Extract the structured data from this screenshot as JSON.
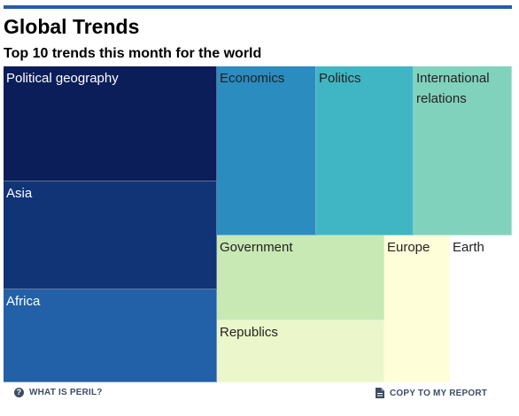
{
  "header": {
    "title": "Global Trends",
    "subtitle": "Top 10 trends this month for the world"
  },
  "colors": {
    "rule": "#2a5aa8"
  },
  "chart_data": {
    "type": "treemap",
    "title": "Global Trends",
    "subtitle": "Top 10 trends this month for the world",
    "items": [
      {
        "label": "Political geography",
        "rank": 1,
        "color": "#0b1e5a"
      },
      {
        "label": "Asia",
        "rank": 2,
        "color": "#113477"
      },
      {
        "label": "Africa",
        "rank": 3,
        "color": "#2260a8"
      },
      {
        "label": "Economics",
        "rank": 4,
        "color": "#2b8cc0"
      },
      {
        "label": "Politics",
        "rank": 5,
        "color": "#40b6c4"
      },
      {
        "label": "International relations",
        "rank": 6,
        "color": "#80d2bc"
      },
      {
        "label": "Government",
        "rank": 7,
        "color": "#c8e9b4"
      },
      {
        "label": "Republics",
        "rank": 8,
        "color": "#ebf7ca"
      },
      {
        "label": "Europe",
        "rank": 9,
        "color": "#fefed8"
      },
      {
        "label": "Earth",
        "rank": 10,
        "color": "#ffffff"
      }
    ]
  },
  "footer": {
    "help_label": "WHAT IS PERIL?",
    "copy_label": "COPY TO MY REPORT"
  }
}
